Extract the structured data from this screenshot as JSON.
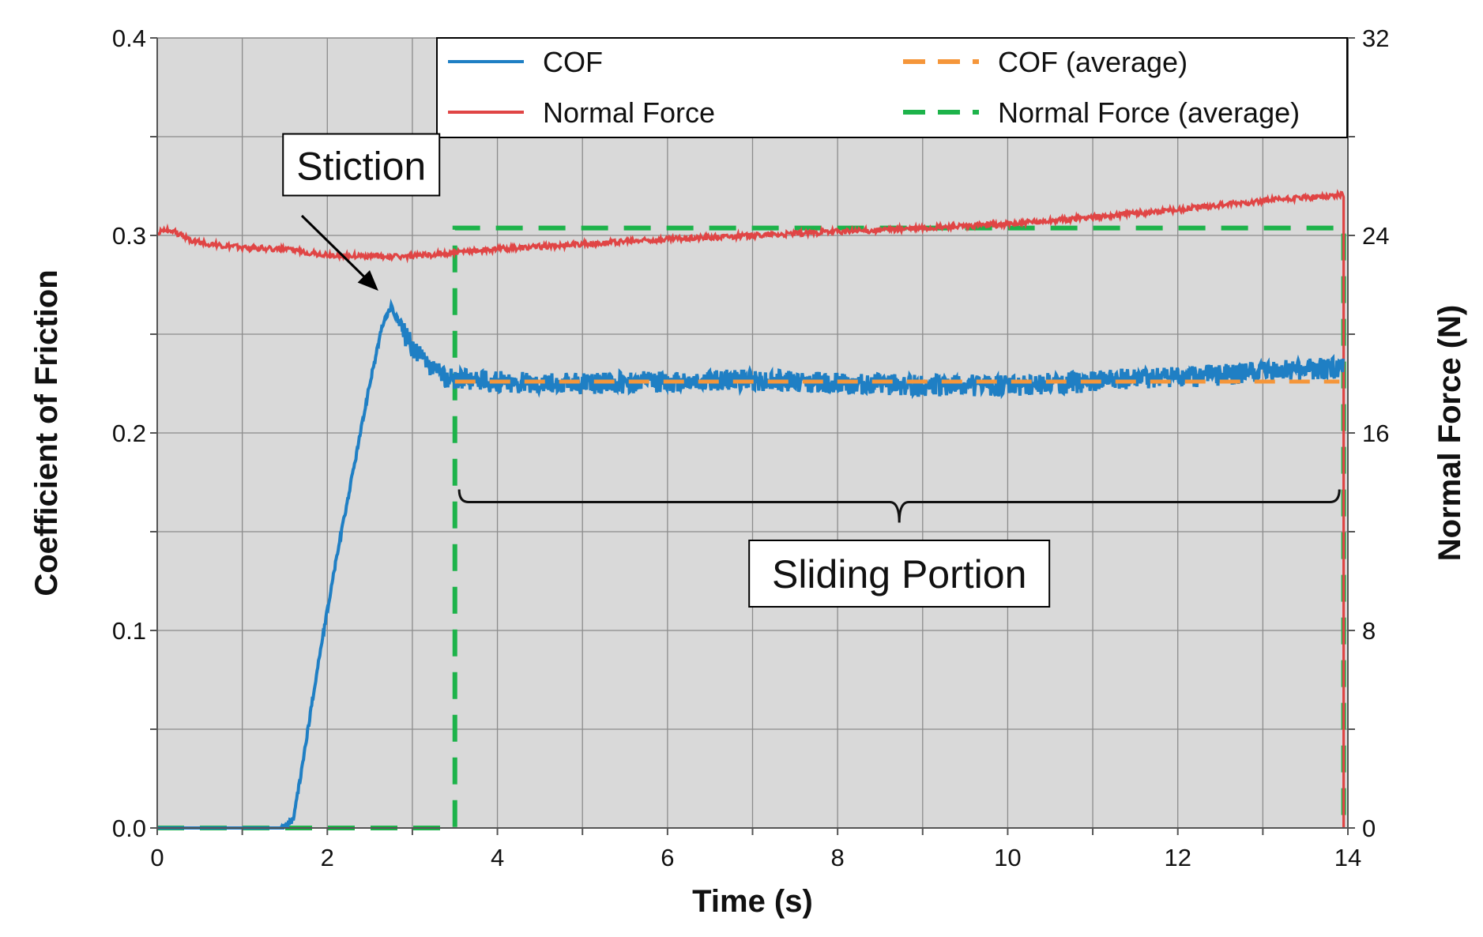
{
  "chart_data": {
    "type": "line",
    "title": "",
    "xlabel": "Time (s)",
    "ylabel": "Coefficient of Friction",
    "y2label": "Normal Force (N)",
    "xlim": [
      0,
      14
    ],
    "ylim": [
      0,
      0.4
    ],
    "y2lim": [
      0,
      32
    ],
    "grid": true,
    "x_ticks": [
      "0",
      "2",
      "4",
      "6",
      "8",
      "10",
      "12",
      "14"
    ],
    "y_ticks": [
      "0.0",
      "0.1",
      "0.2",
      "0.3",
      "0.4"
    ],
    "y2_ticks": [
      "0",
      "8",
      "16",
      "24",
      "32"
    ],
    "legend_position": "top-right",
    "series": [
      {
        "name": "COF",
        "axis": "left",
        "style": "solid",
        "color": "#1f7fc4",
        "x": [
          0,
          0.5,
          1.0,
          1.45,
          1.6,
          1.7,
          1.9,
          2.1,
          2.3,
          2.5,
          2.65,
          2.75,
          2.85,
          3.0,
          3.2,
          3.4,
          3.6,
          4.0,
          5.0,
          6.0,
          7.0,
          8.0,
          9.0,
          10.0,
          11.0,
          12.0,
          13.0,
          13.95
        ],
        "values": [
          0,
          0,
          0,
          0,
          0.004,
          0.03,
          0.085,
          0.135,
          0.18,
          0.225,
          0.255,
          0.264,
          0.255,
          0.243,
          0.233,
          0.228,
          0.227,
          0.226,
          0.225,
          0.226,
          0.227,
          0.225,
          0.224,
          0.224,
          0.226,
          0.228,
          0.231,
          0.233
        ]
      },
      {
        "name": "Normal Force",
        "axis": "right",
        "style": "solid",
        "color": "#e04545",
        "x": [
          0,
          0.15,
          0.4,
          0.8,
          1.2,
          1.6,
          2.0,
          2.5,
          3.0,
          3.5,
          4.0,
          5.0,
          6.0,
          7.0,
          8.0,
          9.0,
          10.0,
          11.0,
          12.0,
          13.0,
          13.95,
          13.95
        ],
        "values": [
          24.1,
          24.25,
          23.8,
          23.55,
          23.5,
          23.4,
          23.2,
          23.15,
          23.15,
          23.3,
          23.45,
          23.65,
          23.85,
          24.0,
          24.15,
          24.3,
          24.45,
          24.75,
          25.05,
          25.4,
          25.65,
          0
        ]
      },
      {
        "name": "COF (average)",
        "axis": "left",
        "style": "dashed",
        "color": "#f5963a",
        "x": [
          3.5,
          13.9
        ],
        "values": [
          0.226,
          0.226
        ]
      },
      {
        "name": "Normal Force (average)",
        "axis": "right",
        "style": "dashed",
        "color": "#1db34a",
        "x": [
          0,
          3.5,
          3.5,
          13.95,
          13.95
        ],
        "values": [
          0,
          0,
          24.3,
          24.3,
          0
        ]
      }
    ],
    "annotations": {
      "stiction": {
        "text": "Stiction",
        "box_x": 1.6,
        "box_y": 0.333,
        "arrow_from": [
          1.7,
          0.31
        ],
        "arrow_to": [
          2.6,
          0.272
        ]
      },
      "sliding": {
        "text": "Sliding Portion",
        "x_start": 3.55,
        "x_end": 13.9,
        "y": 0.165,
        "label_y": 0.128
      }
    }
  }
}
